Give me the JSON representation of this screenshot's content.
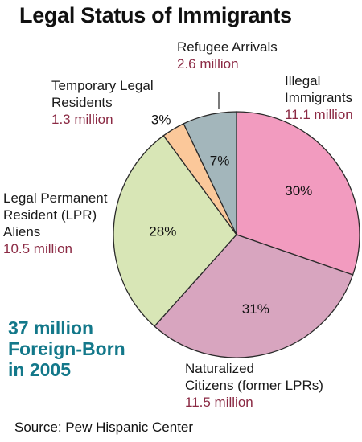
{
  "chart_data": {
    "type": "pie",
    "title": "Legal Status of Immigrants",
    "slices": [
      {
        "label_lines": [
          "Illegal",
          "Immigrants"
        ],
        "amount": "11.1 million",
        "percent": 30,
        "pct_label": "30%",
        "color": "#f29bbf"
      },
      {
        "label_lines": [
          "Naturalized",
          "Citizens (former LPRs)"
        ],
        "amount": "11.5 million",
        "percent": 31,
        "pct_label": "31%",
        "color": "#d8a5bf"
      },
      {
        "label_lines": [
          "Legal Permanent",
          "Resident (LPR)",
          "Aliens"
        ],
        "amount": "10.5 million",
        "percent": 28,
        "pct_label": "28%",
        "color": "#d8e6b6"
      },
      {
        "label_lines": [
          "Temporary Legal",
          "Residents"
        ],
        "amount": "1.3 million",
        "percent": 3,
        "pct_label": "3%",
        "color": "#fbc89a"
      },
      {
        "label_lines": [
          "Refugee Arrivals"
        ],
        "amount": "2.6 million",
        "percent": 7,
        "pct_label": "7%",
        "color": "#a3b6bb"
      }
    ],
    "total_lines": [
      "37 million",
      "Foreign-Born",
      "in 2005"
    ]
  },
  "source": "Source: Pew Hispanic Center"
}
